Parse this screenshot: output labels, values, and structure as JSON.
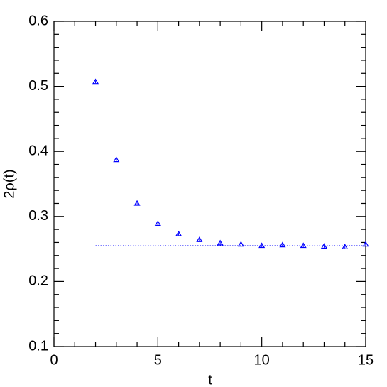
{
  "chart_data": {
    "type": "scatter",
    "xlabel": "t",
    "ylabel": "2ρ(t)",
    "series": [
      {
        "color": "#0000ff",
        "x": [
          2,
          3,
          4,
          5,
          6,
          7,
          8,
          9,
          10,
          11,
          12,
          13,
          14,
          15
        ],
        "values": [
          0.507,
          0.387,
          0.32,
          0.289,
          0.273,
          0.264,
          0.259,
          0.257,
          0.255,
          0.256,
          0.255,
          0.254,
          0.253,
          0.257
        ],
        "errors": [
          0.002,
          0.002,
          0.002,
          0.002,
          0.002,
          0.002,
          0.002,
          0.002,
          0.002,
          0.002,
          0.002,
          0.002,
          0.002,
          0.003
        ]
      }
    ],
    "fit": {
      "color": "#0000ff",
      "x": [
        2,
        15
      ],
      "values": [
        0.255,
        0.255
      ]
    },
    "xlim": [
      0,
      15
    ],
    "ylim": [
      0.1,
      0.6
    ],
    "xticks": [
      0,
      5,
      10,
      15
    ],
    "yticks": [
      0.1,
      0.2,
      0.3,
      0.4,
      0.5,
      0.6
    ],
    "xminorticks": [
      1,
      2,
      3,
      4,
      6,
      7,
      8,
      9,
      11,
      12,
      13,
      14
    ],
    "yminorticks": [
      0.12,
      0.14,
      0.16,
      0.18,
      0.22,
      0.24,
      0.26,
      0.28,
      0.32,
      0.34,
      0.36,
      0.38,
      0.42,
      0.44,
      0.46,
      0.48,
      0.52,
      0.54,
      0.56,
      0.58
    ]
  }
}
